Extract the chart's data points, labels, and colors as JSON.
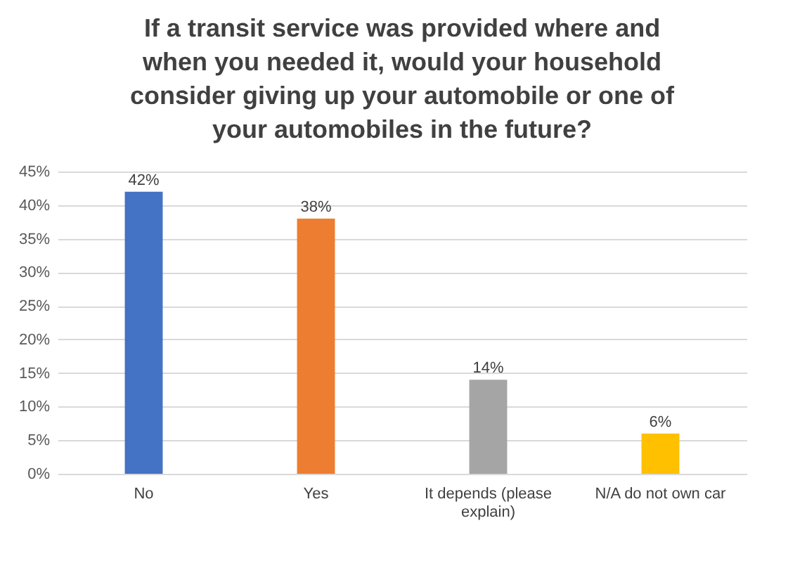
{
  "chart_data": {
    "type": "bar",
    "title": "If a transit service was provided where and when you needed it, would your household consider giving up your automobile or one of your automobiles in the future?",
    "categories": [
      "No",
      "Yes",
      "It depends (please explain)",
      "N/A do not own car"
    ],
    "values": [
      42,
      38,
      14,
      6
    ],
    "colors": [
      "#4472c4",
      "#ed7d31",
      "#a5a5a5",
      "#ffc000"
    ],
    "value_labels": [
      "42%",
      "38%",
      "14%",
      "6%"
    ],
    "ylim": [
      0,
      45
    ],
    "yticks": [
      {
        "value": 0,
        "label": "0%"
      },
      {
        "value": 5,
        "label": "5%"
      },
      {
        "value": 10,
        "label": "10%"
      },
      {
        "value": 15,
        "label": "15%"
      },
      {
        "value": 20,
        "label": "20%"
      },
      {
        "value": 25,
        "label": "25%"
      },
      {
        "value": 30,
        "label": "30%"
      },
      {
        "value": 35,
        "label": "35%"
      },
      {
        "value": 40,
        "label": "40%"
      },
      {
        "value": 45,
        "label": "45%"
      }
    ],
    "grid": "y"
  }
}
